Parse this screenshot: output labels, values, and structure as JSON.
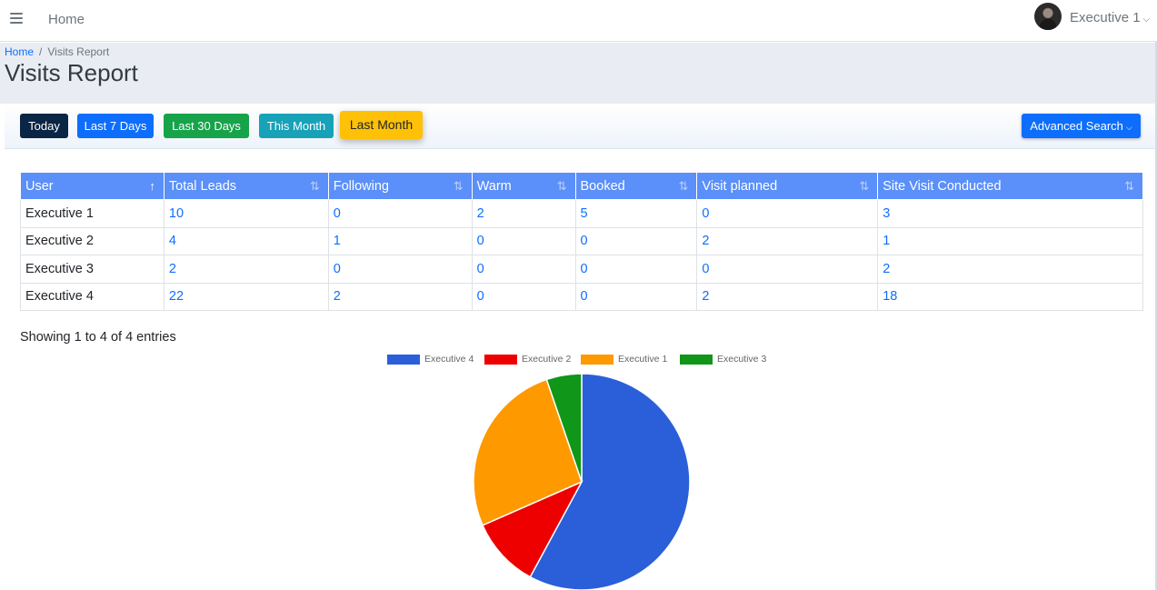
{
  "topbar": {
    "home_label": "Home",
    "user_name": "Executive 1",
    "user_caret": "⌵"
  },
  "breadcrumb": {
    "home": "Home",
    "separator": "/",
    "current": "Visits Report"
  },
  "page": {
    "title": "Visits Report"
  },
  "filters": {
    "today": "Today",
    "last7": "Last 7 Days",
    "last30": "Last 30 Days",
    "this_month": "This Month",
    "last_month": "Last Month",
    "active": "Last Month",
    "advanced_search": "Advanced Search",
    "advanced_caret": "⌵"
  },
  "table": {
    "headers": [
      "User",
      "Total Leads",
      "Following",
      "Warm",
      "Booked",
      "Visit planned",
      "Site Visit Conducted"
    ],
    "sorted_column": "User",
    "rows": [
      [
        "Executive 1",
        "10",
        "0",
        "2",
        "5",
        "0",
        "3"
      ],
      [
        "Executive 2",
        "4",
        "1",
        "0",
        "0",
        "2",
        "1"
      ],
      [
        "Executive 3",
        "2",
        "0",
        "0",
        "0",
        "0",
        "2"
      ],
      [
        "Executive 4",
        "22",
        "2",
        "0",
        "0",
        "2",
        "18"
      ]
    ],
    "info": "Showing 1 to 4 of 4 entries"
  },
  "chart_data": {
    "type": "pie",
    "title": "",
    "categories": [
      "Executive 4",
      "Executive 2",
      "Executive 1",
      "Executive 3"
    ],
    "values": [
      22,
      4,
      10,
      2
    ],
    "colors": [
      "#2b5fd9",
      "#ee0000",
      "#ff9900",
      "#109618"
    ],
    "legend": "top"
  },
  "colors": {
    "header_bg": "#5b8ff9",
    "link": "#0d6efd",
    "today": "#0b2545",
    "last7": "#0d6efd",
    "last30": "#17a34a",
    "this_month": "#17a2b8",
    "last_month": "#ffc107"
  }
}
